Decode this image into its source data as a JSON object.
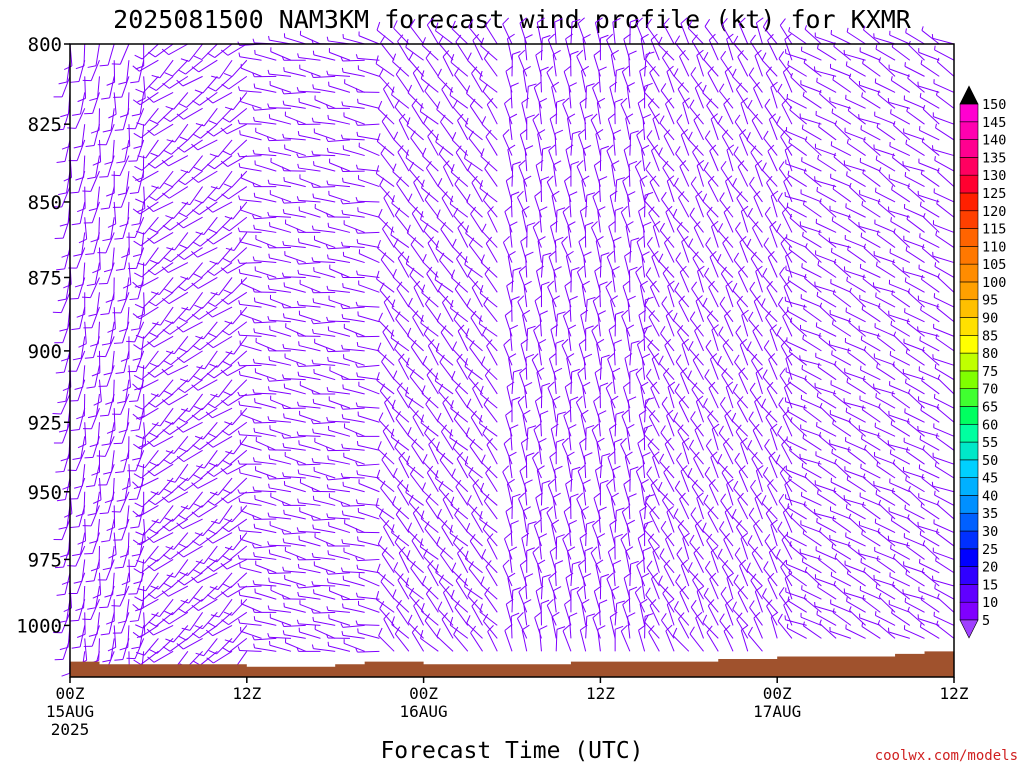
{
  "chart_data": {
    "type": "wind-barb-profile",
    "title": "2025081500 NAM3KM forecast wind profile (kt) for KXMR",
    "xlabel": "Forecast Time (UTC)",
    "ylabel": "",
    "y_axis": {
      "scale": "pressure (reversed, top 800)",
      "range": [
        800,
        1020
      ],
      "ticks": [
        800,
        825,
        850,
        875,
        900,
        925,
        950,
        975,
        1000
      ],
      "tick_labels": [
        "800",
        "825",
        "850",
        "875",
        "900",
        "925",
        "950",
        "975",
        "1000"
      ]
    },
    "x_axis": {
      "range_hours": [
        0,
        60
      ],
      "ticks": [
        {
          "hour": 0,
          "line1": "00Z",
          "line2": "15AUG",
          "line3": "2025"
        },
        {
          "hour": 12,
          "line1": "12Z",
          "line2": "",
          "line3": ""
        },
        {
          "hour": 24,
          "line1": "00Z",
          "line2": "16AUG",
          "line3": ""
        },
        {
          "hour": 36,
          "line1": "12Z",
          "line2": "",
          "line3": ""
        },
        {
          "hour": 48,
          "line1": "00Z",
          "line2": "17AUG",
          "line3": ""
        },
        {
          "hour": 60,
          "line1": "12Z",
          "line2": "",
          "line3": ""
        }
      ]
    },
    "colorbar": {
      "unit": "kt",
      "levels": [
        "5",
        "10",
        "15",
        "20",
        "25",
        "30",
        "35",
        "40",
        "45",
        "50",
        "55",
        "60",
        "65",
        "70",
        "75",
        "80",
        "85",
        "90",
        "95",
        "100",
        "105",
        "110",
        "115",
        "120",
        "125",
        "130",
        "135",
        "140",
        "145",
        "150"
      ],
      "colors": [
        "#8000ff",
        "#6000ff",
        "#3000ff",
        "#0000ff",
        "#0030ff",
        "#0060ff",
        "#0090ff",
        "#00b0ff",
        "#00d0ff",
        "#00e8c8",
        "#00ffa0",
        "#00ff60",
        "#40ff30",
        "#80ff00",
        "#c0ff00",
        "#ffff00",
        "#ffe000",
        "#ffc000",
        "#ffa000",
        "#ff8c00",
        "#ff7800",
        "#ff6400",
        "#ff4000",
        "#ff2000",
        "#ff0030",
        "#ff0060",
        "#ff0090",
        "#ff00b0",
        "#ff00d0",
        "#ff00ff"
      ],
      "low_color": "#a040ff",
      "high_color": "#000000"
    },
    "barb_color": "#8000ff",
    "ground_color": "#a0522d",
    "time_step_hours": 1,
    "levels_hpa": [
      800,
      805,
      810,
      815,
      820,
      825,
      830,
      835,
      840,
      845,
      850,
      855,
      860,
      865,
      870,
      875,
      880,
      885,
      890,
      895,
      900,
      905,
      910,
      915,
      920,
      925,
      930,
      935,
      940,
      945,
      950,
      955,
      960,
      965,
      970,
      975,
      980,
      985,
      990,
      995,
      1000,
      1005,
      1010
    ],
    "wind_regimes": [
      {
        "hours": [
          0,
          6
        ],
        "direction_deg": 190,
        "speed_kt": 12
      },
      {
        "hours": [
          6,
          13
        ],
        "direction_deg": 230,
        "speed_kt": 10
      },
      {
        "hours": [
          13,
          22
        ],
        "direction_deg": 280,
        "speed_kt": 8
      },
      {
        "hours": [
          22,
          30
        ],
        "direction_deg": 320,
        "speed_kt": 10
      },
      {
        "hours": [
          30,
          40
        ],
        "direction_deg": 350,
        "speed_kt": 12
      },
      {
        "hours": [
          40,
          50
        ],
        "direction_deg": 330,
        "speed_kt": 10
      },
      {
        "hours": [
          50,
          60
        ],
        "direction_deg": 300,
        "speed_kt": 8
      }
    ],
    "surface_pressure_hpa": [
      {
        "hour": 0,
        "p": 1014
      },
      {
        "hour": 2,
        "p": 1015
      },
      {
        "hour": 7,
        "p": 1015
      },
      {
        "hour": 12,
        "p": 1016
      },
      {
        "hour": 16,
        "p": 1016
      },
      {
        "hour": 18,
        "p": 1015
      },
      {
        "hour": 20,
        "p": 1014
      },
      {
        "hour": 24,
        "p": 1015
      },
      {
        "hour": 30,
        "p": 1015
      },
      {
        "hour": 34,
        "p": 1014
      },
      {
        "hour": 40,
        "p": 1014
      },
      {
        "hour": 44,
        "p": 1013
      },
      {
        "hour": 48,
        "p": 1012
      },
      {
        "hour": 54,
        "p": 1012
      },
      {
        "hour": 56,
        "p": 1011
      },
      {
        "hour": 58,
        "p": 1010
      },
      {
        "hour": 60,
        "p": 1010
      }
    ]
  },
  "credit": "coolwx.com/models"
}
